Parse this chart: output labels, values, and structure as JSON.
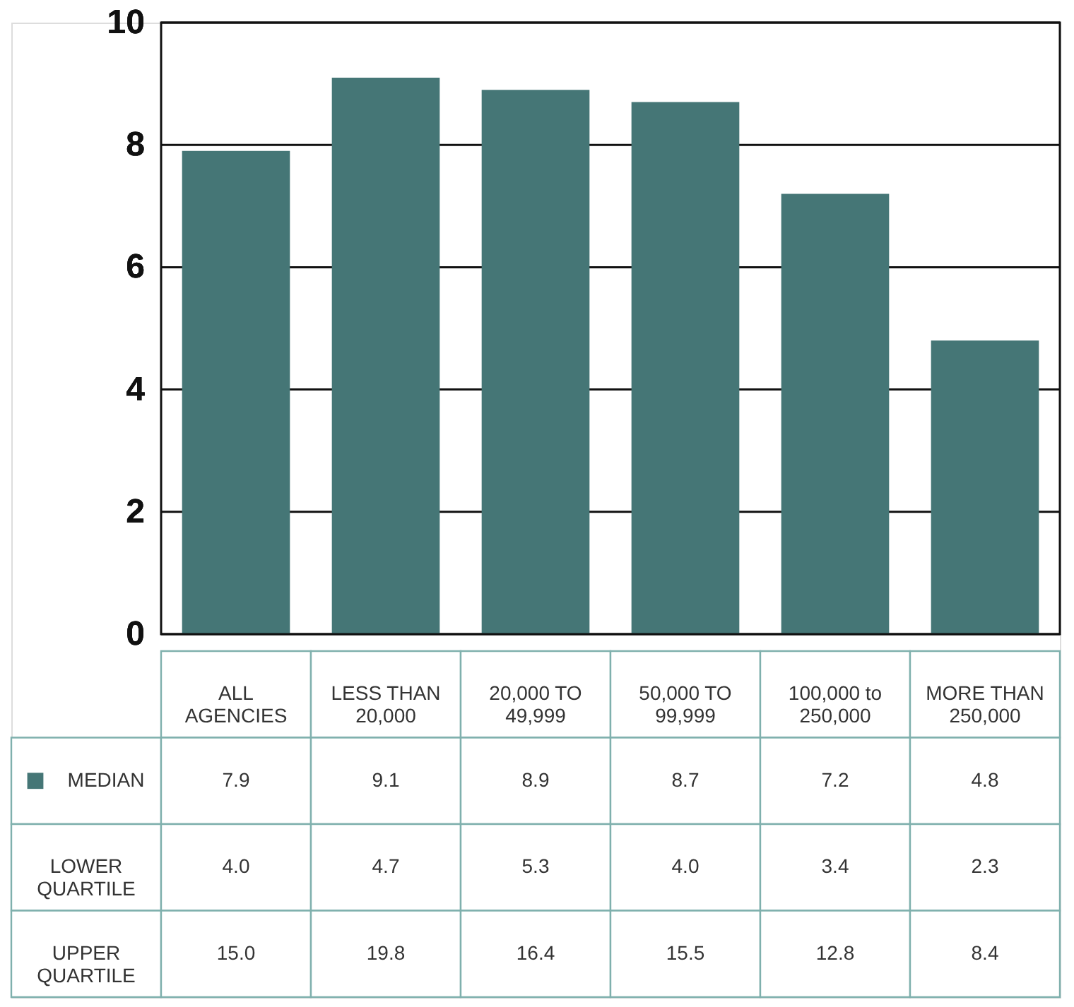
{
  "chart_data": {
    "type": "bar",
    "categories": [
      "ALL AGENCIES",
      "LESS THAN 20,000",
      "20,000 TO 49,999",
      "50,000 TO 99,999",
      "100,000 to 250,000",
      "MORE THAN 250,000"
    ],
    "series": [
      {
        "name": "MEDIAN",
        "color": "#457676",
        "values": [
          7.9,
          9.1,
          8.9,
          8.7,
          7.2,
          4.8
        ]
      },
      {
        "name": "LOWER QUARTILE",
        "values": [
          null,
          null,
          null,
          null,
          null,
          null
        ],
        "value_labels": [
          "4.0",
          "4.7",
          "5.3",
          "4.0",
          "3.4",
          "2.3"
        ]
      },
      {
        "name": "UPPER QUARTILE",
        "values": [
          null,
          null,
          null,
          null,
          null,
          null
        ],
        "value_labels": [
          "15.0",
          "19.8",
          "16.4",
          "15.5",
          "12.8",
          "8.4"
        ]
      }
    ],
    "ylim": [
      0,
      10
    ],
    "yticks": [
      0,
      2,
      4,
      6,
      8,
      10
    ],
    "grid": "y",
    "data_labels": true,
    "legend": "bottom left"
  }
}
